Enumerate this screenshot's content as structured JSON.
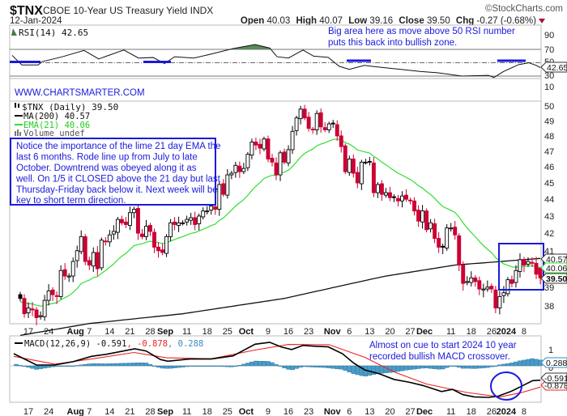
{
  "header": {
    "symbol": "$TNX",
    "description": "CBOE 10-Year US Treasury Yield INDX",
    "copyright": "©StockCharts.com",
    "date": "12-Jan-2024",
    "open_label": "Open",
    "open": "40.03",
    "high_label": "High",
    "high": "40.07",
    "low_label": "Low",
    "low": "39.16",
    "close_label": "Close",
    "close": "39.50",
    "chg_label": "Chg",
    "chg": "-0.27 (-0.68%)"
  },
  "rsi_panel": {
    "legend": "RSI(14) 42.65",
    "value_tag": "42.65",
    "ticks": [
      "90",
      "70",
      "50",
      "30",
      "10"
    ],
    "annotation": [
      "Big area here as move above 50 RSI number",
      "puts this back into bullish zone."
    ]
  },
  "price_panel": {
    "watermark": "WWW.CHARTSMARTER.COM",
    "legend_price": "$TNX (Daily) 39.50",
    "legend_ma": "MA(200) 40.57",
    "legend_ema": "EMA(21) 40.06",
    "legend_volume": "Volume undef",
    "tags": {
      "ma200": "40.57",
      "ema21": "40.06",
      "close": "39.50"
    },
    "ticks": [
      "50",
      "49",
      "48",
      "47",
      "46",
      "45",
      "44",
      "43",
      "42",
      "41",
      "39",
      "38"
    ],
    "annotation": [
      "Notice the importance of the lime 21 day EMA the",
      "last 6 months. Rode line up from July to late",
      "October. Downtrend was obeyed along it as",
      "well. On 1/5 it CLOSED above the 21 day but last",
      "Thursday-Friday back below it. Next week will be",
      "key to short term direction."
    ]
  },
  "macd_panel": {
    "legend_macd": "MACD(12,26,9) -0.591",
    "legend_signal": ", -0.878",
    "legend_hist": ", 0.288",
    "tags": {
      "hist": "0.288",
      "macd": "-0.591",
      "signal": "-0.878"
    },
    "ticks": [
      "1",
      "0"
    ],
    "annotation": [
      "Almost on cue to start 2024 10 year",
      "recorded bullish MACD crossover."
    ]
  },
  "colors": {
    "up": "#000000",
    "down": "#cc0033",
    "ema": "#33dd33",
    "ma": "#111111",
    "annotation": "#1a1adc",
    "hist": "#4a9cc8",
    "signal": "#ee2222"
  },
  "chart_data": {
    "type": "candlestick",
    "title": "$TNX CBOE 10-Year US Treasury Yield INDX (Daily)",
    "x_tick_labels": [
      {
        "label": "17",
        "bold": false
      },
      {
        "label": "24",
        "bold": false
      },
      {
        "label": "Aug",
        "bold": true
      },
      {
        "label": "7",
        "bold": false
      },
      {
        "label": "14",
        "bold": false
      },
      {
        "label": "21",
        "bold": false
      },
      {
        "label": "28",
        "bold": false
      },
      {
        "label": "Sep",
        "bold": true
      },
      {
        "label": "11",
        "bold": false
      },
      {
        "label": "18",
        "bold": false
      },
      {
        "label": "25",
        "bold": false
      },
      {
        "label": "Oct",
        "bold": true
      },
      {
        "label": "9",
        "bold": false
      },
      {
        "label": "16",
        "bold": false
      },
      {
        "label": "23",
        "bold": false
      },
      {
        "label": "Nov",
        "bold": true
      },
      {
        "label": "6",
        "bold": false
      },
      {
        "label": "13",
        "bold": false
      },
      {
        "label": "20",
        "bold": false
      },
      {
        "label": "27",
        "bold": false
      },
      {
        "label": "Dec",
        "bold": true
      },
      {
        "label": "11",
        "bold": false
      },
      {
        "label": "18",
        "bold": false
      },
      {
        "label": "26",
        "bold": false
      },
      {
        "label": "2024",
        "bold": true
      },
      {
        "label": "8",
        "bold": false
      }
    ],
    "price_range": [
      37,
      51
    ],
    "closes": [
      38.4,
      37.6,
      37.9,
      37.8,
      37.4,
      37.5,
      38.3,
      38.8,
      38.6,
      38.5,
      39.9,
      39.6,
      39.6,
      40.4,
      41.0,
      41.8,
      40.4,
      40.2,
      40.9,
      40.0,
      41.6,
      41.5,
      41.9,
      42.1,
      42.8,
      42.6,
      42.5,
      43.2,
      43.4,
      42.0,
      41.8,
      42.4,
      42.1,
      41.2,
      41.0,
      40.9,
      41.8,
      42.6,
      42.5,
      42.6,
      42.6,
      42.8,
      42.9,
      42.5,
      43.0,
      43.3,
      43.3,
      43.6,
      43.4,
      44.9,
      44.3,
      45.5,
      45.6,
      46.1,
      45.7,
      45.9,
      46.8,
      47.6,
      47.4,
      47.2,
      47.8,
      46.5,
      46.3,
      45.5,
      46.9,
      46.3,
      47.1,
      48.3,
      49.2,
      49.8,
      49.2,
      48.5,
      48.4,
      49.5,
      48.6,
      48.4,
      48.8,
      48.8,
      48.0,
      47.3,
      45.7,
      46.5,
      45.6,
      45.0,
      46.3,
      46.3,
      46.3,
      44.4,
      44.9,
      44.3,
      44.4,
      44.1,
      44.1,
      43.9,
      44.2,
      44.0,
      43.9,
      43.3,
      42.7,
      43.3,
      42.2,
      42.6,
      41.7,
      41.2,
      41.2,
      42.3,
      42.3,
      41.9,
      40.2,
      39.2,
      39.3,
      39.5,
      39.3,
      38.9,
      38.9,
      39.0,
      38.9,
      37.9,
      38.5,
      38.7,
      39.4,
      39.2,
      39.9,
      40.5,
      40.2,
      40.4,
      40.3,
      39.7,
      39.5
    ],
    "ema21_seed": 38.2,
    "ma200": [
      [
        0,
        36.5
      ],
      [
        17,
        37.1
      ],
      [
        40,
        37.6
      ],
      [
        65,
        38.4
      ],
      [
        90,
        39.6
      ],
      [
        107,
        40.2
      ],
      [
        128,
        40.57
      ]
    ],
    "rsi14": [
      [
        -2,
        61
      ],
      [
        0.4,
        46.7
      ],
      [
        4.4,
        46.7
      ],
      [
        5.4,
        51.6
      ],
      [
        10.4,
        59
      ],
      [
        15.7,
        68.4
      ],
      [
        19.3,
        55.7
      ],
      [
        25.5,
        69
      ],
      [
        29.1,
        57
      ],
      [
        32.7,
        57.8
      ],
      [
        35.5,
        48.8
      ],
      [
        38,
        59
      ],
      [
        42.7,
        57
      ],
      [
        47,
        63
      ],
      [
        52.4,
        71.2
      ],
      [
        57.8,
        77.3
      ],
      [
        61.4,
        72
      ],
      [
        63.2,
        59
      ],
      [
        66,
        57
      ],
      [
        69.6,
        69
      ],
      [
        72.2,
        59.8
      ],
      [
        75.8,
        58
      ],
      [
        78.5,
        44.7
      ],
      [
        81,
        40
      ],
      [
        84.7,
        46
      ],
      [
        87.5,
        44
      ],
      [
        93.7,
        40
      ],
      [
        98.3,
        37
      ],
      [
        102.7,
        35
      ],
      [
        108.7,
        30
      ],
      [
        115.2,
        31
      ],
      [
        116.6,
        28
      ],
      [
        119,
        37
      ],
      [
        122.6,
        47
      ],
      [
        125.2,
        50
      ],
      [
        127,
        46
      ],
      [
        128,
        42.65
      ]
    ],
    "rsi_levels": {
      "overbought": 70,
      "mid": 50,
      "oversold": 30
    },
    "macd": [
      [
        -1.6,
        0.5
      ],
      [
        4,
        0.033
      ],
      [
        8.5,
        0.033
      ],
      [
        13,
        0.17
      ],
      [
        17.5,
        0.39
      ],
      [
        21,
        0.47
      ],
      [
        28.2,
        0.7
      ],
      [
        31,
        0.61
      ],
      [
        34.5,
        0.26
      ],
      [
        36.3,
        0.19
      ],
      [
        41.7,
        0.28
      ],
      [
        47,
        0.28
      ],
      [
        52.4,
        0.41
      ],
      [
        57.8,
        0.89
      ],
      [
        61.4,
        0.97
      ],
      [
        64.2,
        0.78
      ],
      [
        66.8,
        0.67
      ],
      [
        69.6,
        0.84
      ],
      [
        72.2,
        0.81
      ],
      [
        75.8,
        0.78
      ],
      [
        79.3,
        0.5
      ],
      [
        82.1,
        0.11
      ],
      [
        84.8,
        -0.17
      ],
      [
        88.4,
        -0.33
      ],
      [
        92,
        -0.56
      ],
      [
        95.6,
        -0.67
      ],
      [
        99.1,
        -0.81
      ],
      [
        103.7,
        -1.06
      ],
      [
        106.4,
        -0.97
      ],
      [
        109,
        -1.19
      ],
      [
        111.8,
        -1.28
      ],
      [
        115.3,
        -1.3
      ],
      [
        117.6,
        -1.25
      ],
      [
        120.7,
        -1.06
      ],
      [
        123.4,
        -0.84
      ],
      [
        126.1,
        -0.61
      ],
      [
        128,
        -0.591
      ]
    ],
    "signal": [
      [
        -1.6,
        0.39
      ],
      [
        8.5,
        0.07
      ],
      [
        17.5,
        0.28
      ],
      [
        28,
        0.55
      ],
      [
        36,
        0.33
      ],
      [
        47,
        0.29
      ],
      [
        57.8,
        0.65
      ],
      [
        66,
        0.88
      ],
      [
        76,
        0.87
      ],
      [
        84.8,
        0.35
      ],
      [
        92,
        -0.25
      ],
      [
        100,
        -0.75
      ],
      [
        110,
        -1.1
      ],
      [
        118,
        -1.28
      ],
      [
        123,
        -1.12
      ],
      [
        128,
        -0.878
      ]
    ],
    "last_bar": {
      "open": 40.03,
      "high": 40.07,
      "low": 39.16,
      "close": 39.5
    }
  }
}
